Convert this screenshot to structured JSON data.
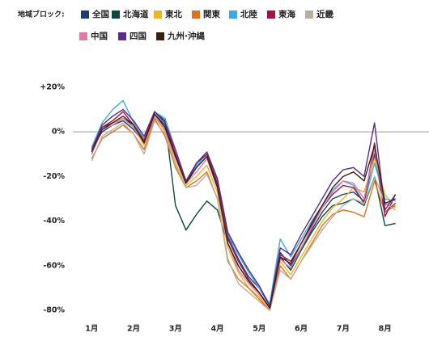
{
  "chart_data": {
    "type": "line",
    "legend_title": "地域ブロック:",
    "x": [
      1.0,
      1.25,
      1.5,
      1.75,
      2.0,
      2.25,
      2.5,
      2.75,
      3.0,
      3.25,
      3.5,
      3.75,
      4.0,
      4.25,
      4.5,
      4.75,
      5.0,
      5.25,
      5.5,
      5.75,
      6.0,
      6.25,
      6.5,
      6.75,
      7.0,
      7.25,
      7.5,
      7.75,
      8.0,
      8.25
    ],
    "series": [
      {
        "name": "全国",
        "color": "#1f3b73",
        "values": [
          -8,
          0,
          3,
          5,
          1,
          -5,
          8,
          3,
          -10,
          -22,
          -16,
          -11,
          -24,
          -47,
          -57,
          -65,
          -70,
          -78,
          -54,
          -60,
          -52,
          -44,
          -36,
          -30,
          -28,
          -27,
          -31,
          -10,
          -36,
          -32
        ]
      },
      {
        "name": "北海道",
        "color": "#0b4a3f",
        "values": [
          -10,
          2,
          4,
          6,
          3,
          -4,
          9,
          5,
          -33,
          -44,
          -37,
          -31,
          -35,
          -50,
          -60,
          -67,
          -72,
          -79,
          -56,
          -62,
          -53,
          -45,
          -38,
          -33,
          -32,
          -30,
          -33,
          -20,
          -42,
          -41
        ]
      },
      {
        "name": "東北",
        "color": "#f0b323",
        "values": [
          -9,
          1,
          4,
          6,
          2,
          -6,
          7,
          0,
          -14,
          -24,
          -20,
          -15,
          -27,
          -52,
          -63,
          -70,
          -74,
          -80,
          -58,
          -64,
          -56,
          -48,
          -40,
          -34,
          -30,
          -25,
          -27,
          -12,
          -28,
          -34
        ]
      },
      {
        "name": "関東",
        "color": "#e07020",
        "values": [
          -12,
          -3,
          0,
          3,
          -1,
          -8,
          6,
          -2,
          -16,
          -25,
          -22,
          -18,
          -30,
          -58,
          -66,
          -70,
          -75,
          -80,
          -60,
          -66,
          -58,
          -50,
          -42,
          -37,
          -35,
          -36,
          -38,
          -22,
          -36,
          -33
        ]
      },
      {
        "name": "北陸",
        "color": "#3fa9dc",
        "values": [
          -7,
          4,
          10,
          14,
          4,
          -3,
          9,
          6,
          -8,
          -23,
          -15,
          -10,
          -22,
          -46,
          -55,
          -63,
          -70,
          -77,
          -48,
          -56,
          -48,
          -40,
          -33,
          -26,
          -22,
          -24,
          -32,
          -14,
          -30,
          -31
        ]
      },
      {
        "name": "東海",
        "color": "#a0144a",
        "values": [
          -9,
          2,
          5,
          9,
          3,
          -4,
          9,
          4,
          -10,
          -23,
          -14,
          -10,
          -23,
          -48,
          -58,
          -66,
          -72,
          -79,
          -55,
          -58,
          -50,
          -42,
          -34,
          -28,
          -24,
          -25,
          -32,
          -5,
          -38,
          -28
        ]
      },
      {
        "name": "近畿",
        "color": "#b8ae9c",
        "values": [
          -13,
          -2,
          1,
          4,
          -1,
          -10,
          5,
          -1,
          -15,
          -25,
          -24,
          -19,
          -30,
          -57,
          -68,
          -72,
          -76,
          -80,
          -62,
          -66,
          -58,
          -51,
          -44,
          -38,
          -33,
          -30,
          -32,
          -20,
          -32,
          -35
        ]
      },
      {
        "name": "中国",
        "color": "#e07aa8",
        "values": [
          -10,
          1,
          3,
          6,
          2,
          -5,
          7,
          1,
          -12,
          -23,
          -18,
          -12,
          -25,
          -50,
          -62,
          -68,
          -73,
          -79,
          -57,
          -61,
          -52,
          -43,
          -34,
          -27,
          -22,
          -23,
          -30,
          -8,
          -33,
          -30
        ]
      },
      {
        "name": "四国",
        "color": "#5b2a8c",
        "values": [
          -8,
          3,
          7,
          10,
          5,
          -2,
          9,
          4,
          -8,
          -22,
          -14,
          -9,
          -21,
          -45,
          -54,
          -62,
          -69,
          -78,
          -52,
          -55,
          -46,
          -38,
          -30,
          -22,
          -17,
          -16,
          -20,
          4,
          -35,
          -28
        ]
      },
      {
        "name": "九州·沖縄",
        "color": "#3a2010",
        "values": [
          -9,
          1,
          4,
          7,
          3,
          -5,
          8,
          2,
          -11,
          -23,
          -16,
          -11,
          -25,
          -50,
          -60,
          -67,
          -72,
          -79,
          -56,
          -59,
          -50,
          -41,
          -33,
          -25,
          -20,
          -18,
          -22,
          -6,
          -32,
          -30
        ]
      }
    ],
    "xlim": [
      0.55,
      9.05
    ],
    "xticks": [
      {
        "value": 1,
        "label": "1月"
      },
      {
        "value": 2,
        "label": "2月"
      },
      {
        "value": 3,
        "label": "3月"
      },
      {
        "value": 4,
        "label": "4月"
      },
      {
        "value": 5,
        "label": "5月"
      },
      {
        "value": 6,
        "label": "6月"
      },
      {
        "value": 7,
        "label": "7月"
      },
      {
        "value": 8,
        "label": "8月"
      }
    ],
    "ylim": [
      -85,
      25
    ],
    "yticks": [
      {
        "value": 20,
        "label": "+20%"
      },
      {
        "value": 0,
        "label": "0%"
      },
      {
        "value": -20,
        "label": "-20%"
      },
      {
        "value": -40,
        "label": "-40%"
      },
      {
        "value": -60,
        "label": "-60%"
      },
      {
        "value": -80,
        "label": "-80%"
      }
    ]
  }
}
